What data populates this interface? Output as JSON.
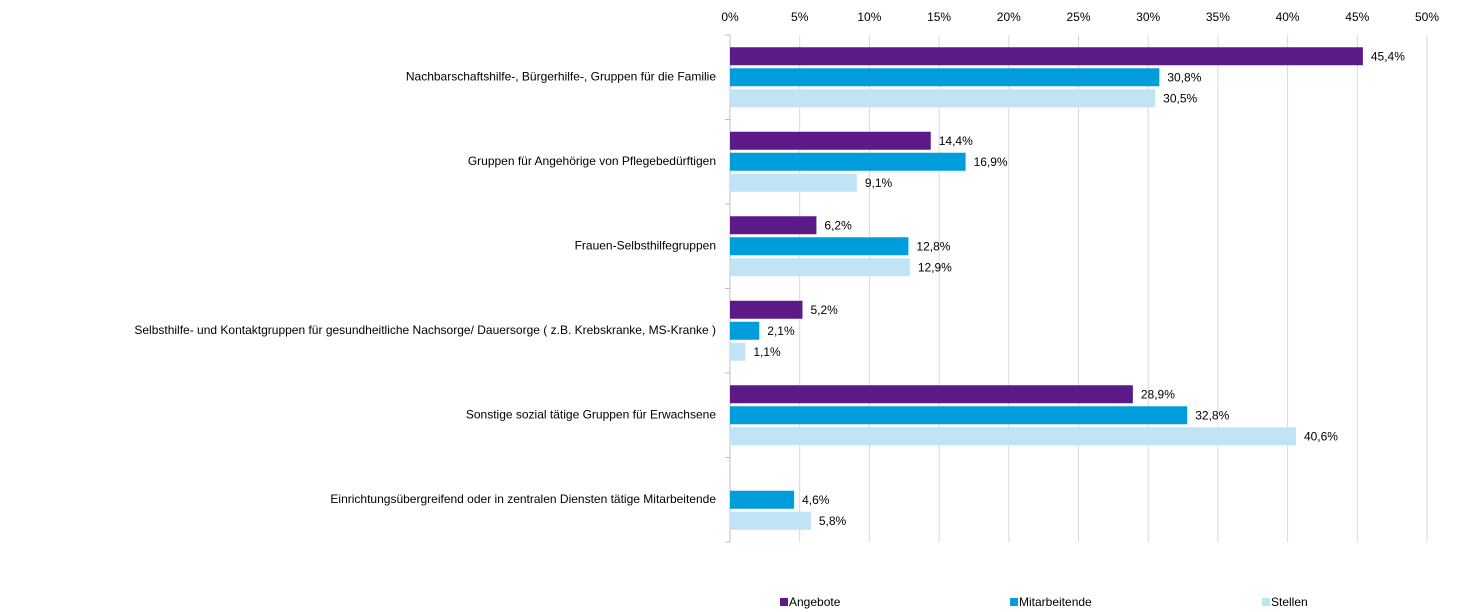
{
  "chart_data": {
    "type": "hbar",
    "categories": [
      "Nachbarschaftshilfe-, Bürgerhilfe-, Gruppen für die Familie",
      "Gruppen für Angehörige von Pflegebedürftigen",
      "Frauen-Selbsthilfegruppen",
      "Selbsthilfe- und Kontaktgruppen für gesundheitliche Nachsorge/ Dauersorge  ( z.B. Krebskranke, MS-Kranke )",
      "Sonstige sozial tätige Gruppen für Erwachsene",
      "Einrichtungsübergreifend oder in zentralen Diensten tätige Mitarbeitende"
    ],
    "series": [
      {
        "name": "Angebote",
        "color": "#5b1a87",
        "values": [
          45.4,
          14.4,
          6.2,
          5.2,
          28.9,
          null
        ],
        "value_labels": [
          "45,4%",
          "14,4%",
          "6,2%",
          "5,2%",
          "28,9%",
          null
        ]
      },
      {
        "name": "Mitarbeitende",
        "color": "#009ddc",
        "values": [
          30.8,
          16.9,
          12.8,
          2.1,
          32.8,
          4.6
        ],
        "value_labels": [
          "30,8%",
          "16,9%",
          "12,8%",
          "2,1%",
          "32,8%",
          "4,6%"
        ]
      },
      {
        "name": "Stellen",
        "color": "#c0e4f6",
        "values": [
          30.5,
          9.1,
          12.9,
          1.1,
          40.6,
          5.8
        ],
        "value_labels": [
          "30,5%",
          "9,1%",
          "12,9%",
          "1,1%",
          "40,6%",
          "5,8%"
        ]
      }
    ],
    "xlim": [
      0,
      50
    ],
    "xticks": [
      {
        "value": 0,
        "label": "0%"
      },
      {
        "value": 5,
        "label": "5%"
      },
      {
        "value": 10,
        "label": "10%"
      },
      {
        "value": 15,
        "label": "15%"
      },
      {
        "value": 20,
        "label": "20%"
      },
      {
        "value": 25,
        "label": "25%"
      },
      {
        "value": 30,
        "label": "30%"
      },
      {
        "value": 35,
        "label": "35%"
      },
      {
        "value": 40,
        "label": "40%"
      },
      {
        "value": 45,
        "label": "45%"
      },
      {
        "value": 50,
        "label": "50%"
      }
    ],
    "grid": true,
    "legend": "bottom"
  }
}
